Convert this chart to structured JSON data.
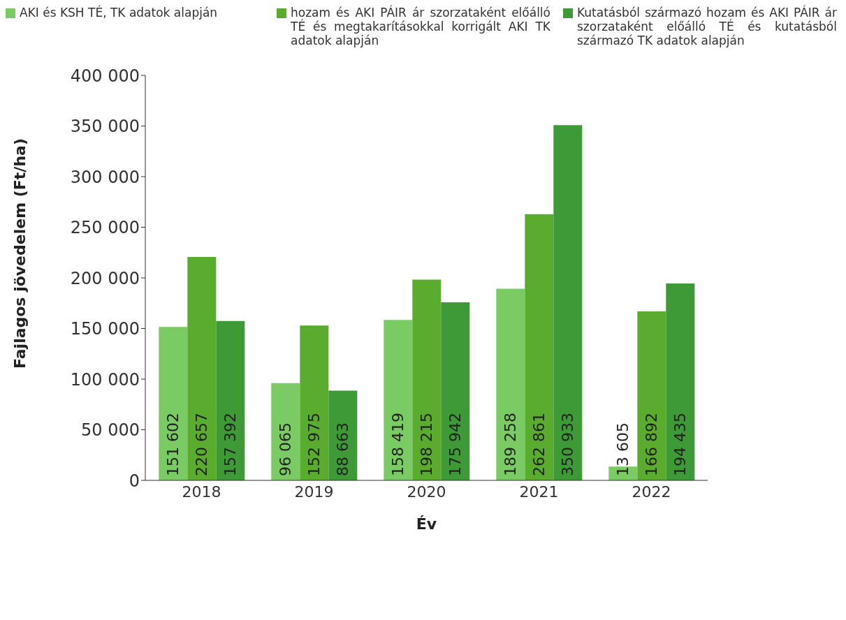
{
  "chart_data": {
    "type": "bar",
    "categories": [
      "2018",
      "2019",
      "2020",
      "2021",
      "2022"
    ],
    "series": [
      {
        "name": "AKI és KSH TÉ, TK adatok alapján",
        "color": "#7acb63",
        "values": [
          151602,
          96065,
          158419,
          189258,
          13605
        ]
      },
      {
        "name": "hozam és AKI PÁIR ár szorzataként előálló TÉ és megtakarításokkal korrigált AKI TK adatok alapján",
        "color": "#5aac2f",
        "values": [
          220657,
          152975,
          198215,
          262861,
          166892
        ]
      },
      {
        "name": "Kutatásból származó hozam és AKI PÁIR ár szorzataként előálló TÉ és kutatásból származó TK adatok alapján",
        "color": "#3e9a37",
        "values": [
          157392,
          88663,
          175942,
          350933,
          194435
        ]
      }
    ],
    "xlabel": "Év",
    "ylabel": "Fajlagos jövedelem  (Ft/ha)",
    "ylim": [
      0,
      400000
    ],
    "yticks": [
      0,
      {
        "value": 50000,
        "label": "50 000"
      },
      {
        "value": 100000,
        "label": "100 000"
      },
      {
        "value": 150000,
        "label": "150 000"
      },
      {
        "value": 200000,
        "label": "200 000"
      },
      {
        "value": 250000,
        "label": "250 000"
      },
      {
        "value": 300000,
        "label": "300 000"
      },
      {
        "value": 350000,
        "label": "350 000"
      },
      {
        "value": 400000,
        "label": "400 000"
      }
    ],
    "value_labels": [
      [
        "151 602",
        "96 065",
        "158 419",
        "189 258",
        "13 605"
      ],
      [
        "220 657",
        "152 975",
        "198 215",
        "262 861",
        "166 892"
      ],
      [
        "157 392",
        "88 663",
        "175 942",
        "350 933",
        "194 435"
      ]
    ],
    "grid": false,
    "legend": "top"
  }
}
